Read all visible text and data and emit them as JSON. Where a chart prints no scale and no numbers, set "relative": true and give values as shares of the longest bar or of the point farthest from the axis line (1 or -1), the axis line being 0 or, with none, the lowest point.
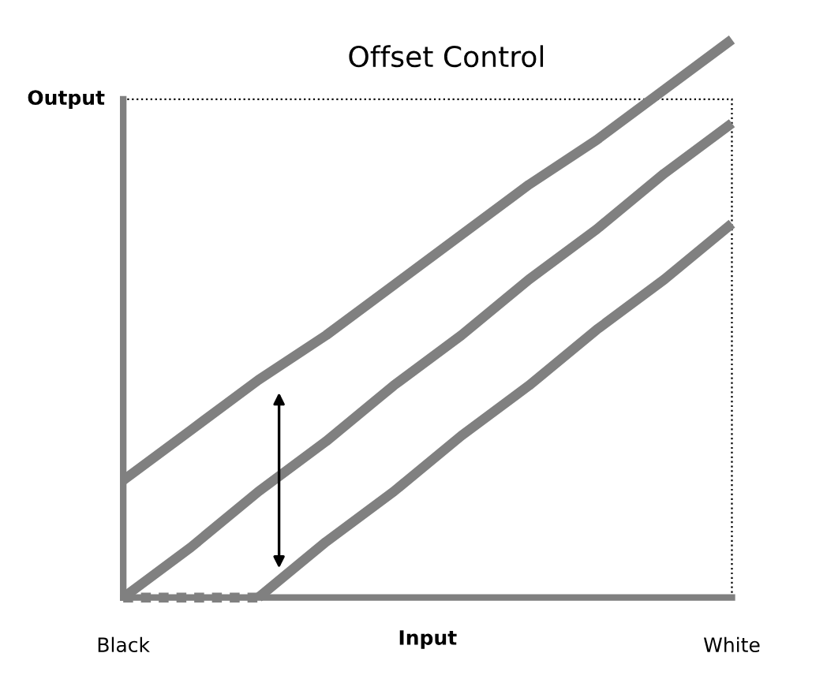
{
  "chart_data": {
    "type": "line",
    "title": "Offset Control",
    "xlabel": "Input",
    "ylabel": "Output",
    "relative": true,
    "categories": [
      "Black",
      null,
      null,
      null,
      null,
      null,
      null,
      null,
      null,
      "White"
    ],
    "legend": false,
    "grid": false,
    "marker": "none",
    "series": [
      {
        "color": "#808080",
        "values": [
          0.21,
          0.3,
          0.39,
          0.47,
          0.56,
          0.65,
          0.74,
          0.82,
          0.91,
          1.0
        ]
      },
      {
        "color": "#808080",
        "values": [
          0,
          0.09,
          0.19,
          0.28,
          0.38,
          0.47,
          0.57,
          0.66,
          0.76,
          0.85
        ]
      },
      {
        "color": "#808080",
        "values": [
          null,
          null,
          0,
          0.1,
          0.19,
          0.29,
          0.38,
          0.48,
          0.57,
          0.67
        ]
      },
      {
        "color": "#808080",
        "values": [
          0,
          0,
          0,
          null,
          null,
          null,
          null,
          null,
          null,
          null
        ],
        "line_style": "dotted"
      }
    ]
  }
}
